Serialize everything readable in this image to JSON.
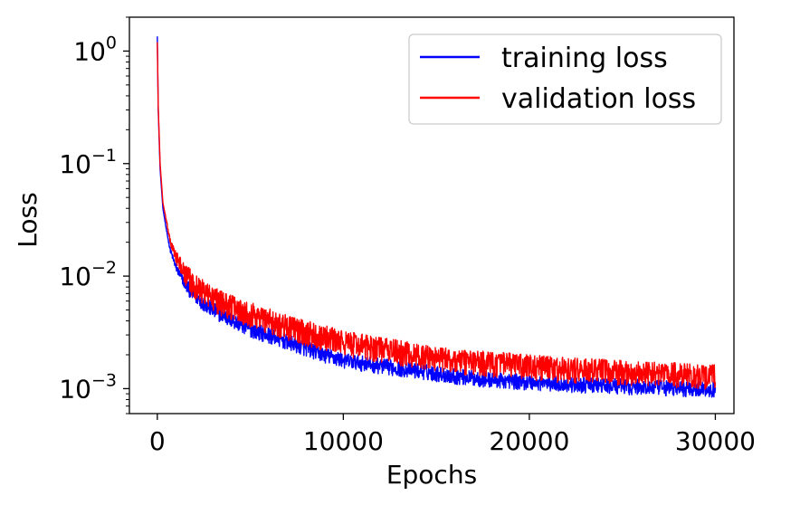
{
  "chart_data": {
    "type": "line",
    "xlabel": "Epochs",
    "ylabel": "Loss",
    "yscale": "log",
    "xlim": [
      -1500,
      31000
    ],
    "ylim": [
      0.0006,
      2.0
    ],
    "x_ticks": [
      {
        "value": 0,
        "label": "0"
      },
      {
        "value": 10000,
        "label": "10000"
      },
      {
        "value": 20000,
        "label": "20000"
      },
      {
        "value": 30000,
        "label": "30000"
      }
    ],
    "y_ticks": [
      {
        "value": 0.001,
        "base": "10",
        "exp": "−3"
      },
      {
        "value": 0.01,
        "base": "10",
        "exp": "−2"
      },
      {
        "value": 0.1,
        "base": "10",
        "exp": "−1"
      },
      {
        "value": 1,
        "base": "10",
        "exp": "0"
      }
    ],
    "legend_position": "upper right",
    "series": [
      {
        "name": "training loss",
        "color": "#0000ff",
        "x": [
          0,
          50,
          150,
          300,
          500,
          700,
          1000,
          1500,
          2000,
          3000,
          4000,
          5000,
          6000,
          7000,
          8000,
          9000,
          10000,
          12000,
          14000,
          16000,
          18000,
          20000,
          22000,
          24000,
          26000,
          28000,
          30000
        ],
        "values": [
          1.35,
          0.3,
          0.09,
          0.04,
          0.025,
          0.017,
          0.012,
          0.0085,
          0.0068,
          0.005,
          0.0041,
          0.0034,
          0.003,
          0.0026,
          0.0023,
          0.002,
          0.0018,
          0.0016,
          0.00145,
          0.0013,
          0.0012,
          0.00115,
          0.0011,
          0.00107,
          0.00104,
          0.00101,
          0.001
        ],
        "noise": 0.1
      },
      {
        "name": "validation loss",
        "color": "#ff0000",
        "x": [
          0,
          50,
          150,
          300,
          500,
          700,
          1000,
          1500,
          2000,
          3000,
          4000,
          5000,
          6000,
          7000,
          8000,
          9000,
          10000,
          12000,
          14000,
          16000,
          18000,
          20000,
          22000,
          24000,
          26000,
          28000,
          30000
        ],
        "values": [
          1.2,
          0.32,
          0.1,
          0.045,
          0.03,
          0.02,
          0.015,
          0.0105,
          0.0084,
          0.0064,
          0.0054,
          0.0047,
          0.0041,
          0.0036,
          0.0032,
          0.0029,
          0.0026,
          0.0023,
          0.002,
          0.0018,
          0.0017,
          0.0016,
          0.0015,
          0.00145,
          0.0014,
          0.00135,
          0.0013
        ],
        "noise": 0.16
      }
    ]
  }
}
